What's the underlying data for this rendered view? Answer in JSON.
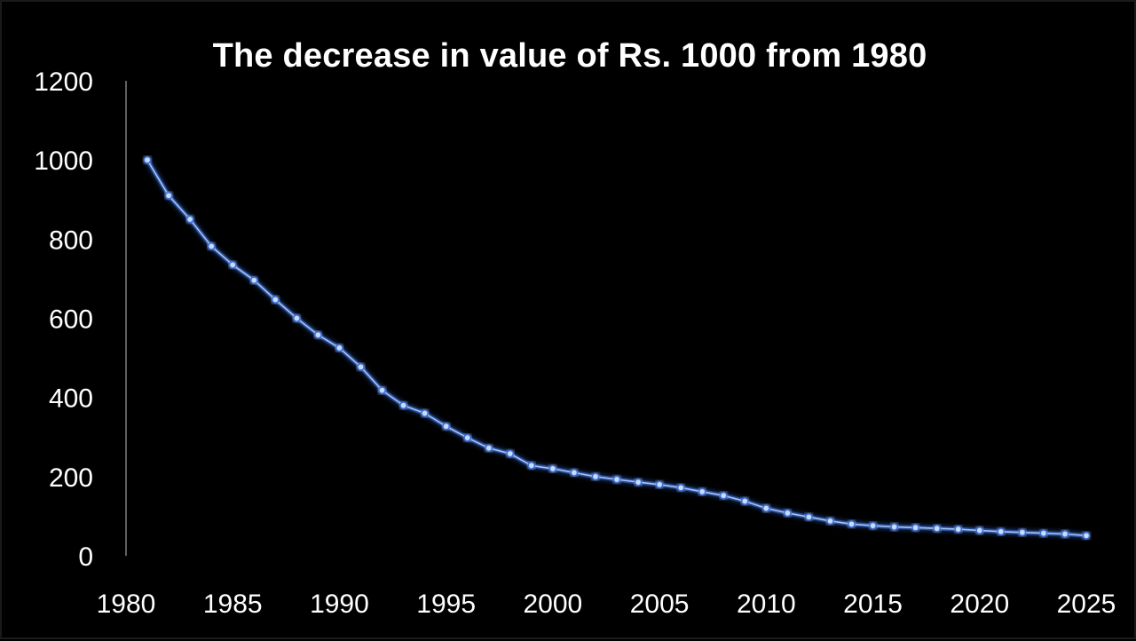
{
  "chart_data": {
    "type": "line",
    "title": "The decrease in value of Rs. 1000 from 1980",
    "xlabel": "",
    "ylabel": "",
    "xlim": [
      1980,
      2025
    ],
    "ylim": [
      0,
      1200
    ],
    "grid": false,
    "x_ticks": [
      1980,
      1985,
      1990,
      1995,
      2000,
      2005,
      2010,
      2015,
      2020,
      2025
    ],
    "y_ticks": [
      0,
      200,
      400,
      600,
      800,
      1000,
      1200
    ],
    "colors": {
      "line": "#a9c3f5",
      "marker": "#c9dcff",
      "glow": "#3b6fd8",
      "axis": "#bfbfbf",
      "text": "#ffffff",
      "background": "#000000"
    },
    "series": [
      {
        "name": "Value of Rs. 1000",
        "x": [
          1981,
          1982,
          1983,
          1984,
          1985,
          1986,
          1987,
          1988,
          1989,
          1990,
          1991,
          1992,
          1993,
          1994,
          1995,
          1996,
          1997,
          1998,
          1999,
          2000,
          2001,
          2002,
          2003,
          2004,
          2005,
          2006,
          2007,
          2008,
          2009,
          2010,
          2011,
          2012,
          2013,
          2014,
          2015,
          2016,
          2017,
          2018,
          2019,
          2020,
          2021,
          2022,
          2023,
          2024,
          2025
        ],
        "values": [
          1000,
          910,
          850,
          782,
          735,
          696,
          647,
          600,
          558,
          525,
          477,
          418,
          380,
          360,
          327,
          298,
          272,
          258,
          228,
          220,
          210,
          200,
          193,
          186,
          180,
          172,
          162,
          152,
          138,
          120,
          108,
          98,
          88,
          80,
          76,
          73,
          71,
          69,
          67,
          64,
          61,
          59,
          57,
          55,
          51
        ]
      }
    ]
  }
}
